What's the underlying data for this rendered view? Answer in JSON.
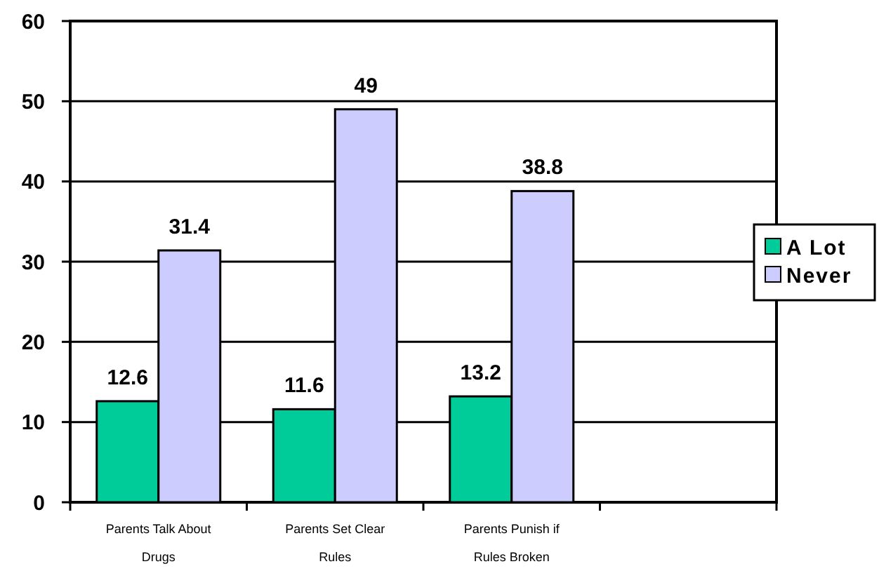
{
  "chart_data": {
    "type": "bar",
    "categories": [
      "Parents Talk About Drugs",
      "Parents Set Clear Rules",
      "Parents Punish if Rules Broken",
      null
    ],
    "series": [
      {
        "name": "A Lot",
        "color": "#00cc99",
        "values": [
          12.6,
          11.6,
          13.2,
          null
        ]
      },
      {
        "name": "Never",
        "color": "#ccccff",
        "values": [
          31.4,
          49,
          38.8,
          null
        ]
      }
    ],
    "ylim": [
      0,
      60
    ],
    "yticks": [
      0,
      10,
      20,
      30,
      40,
      50,
      60
    ],
    "grid": "y",
    "legend": "right",
    "data_labels": true
  }
}
